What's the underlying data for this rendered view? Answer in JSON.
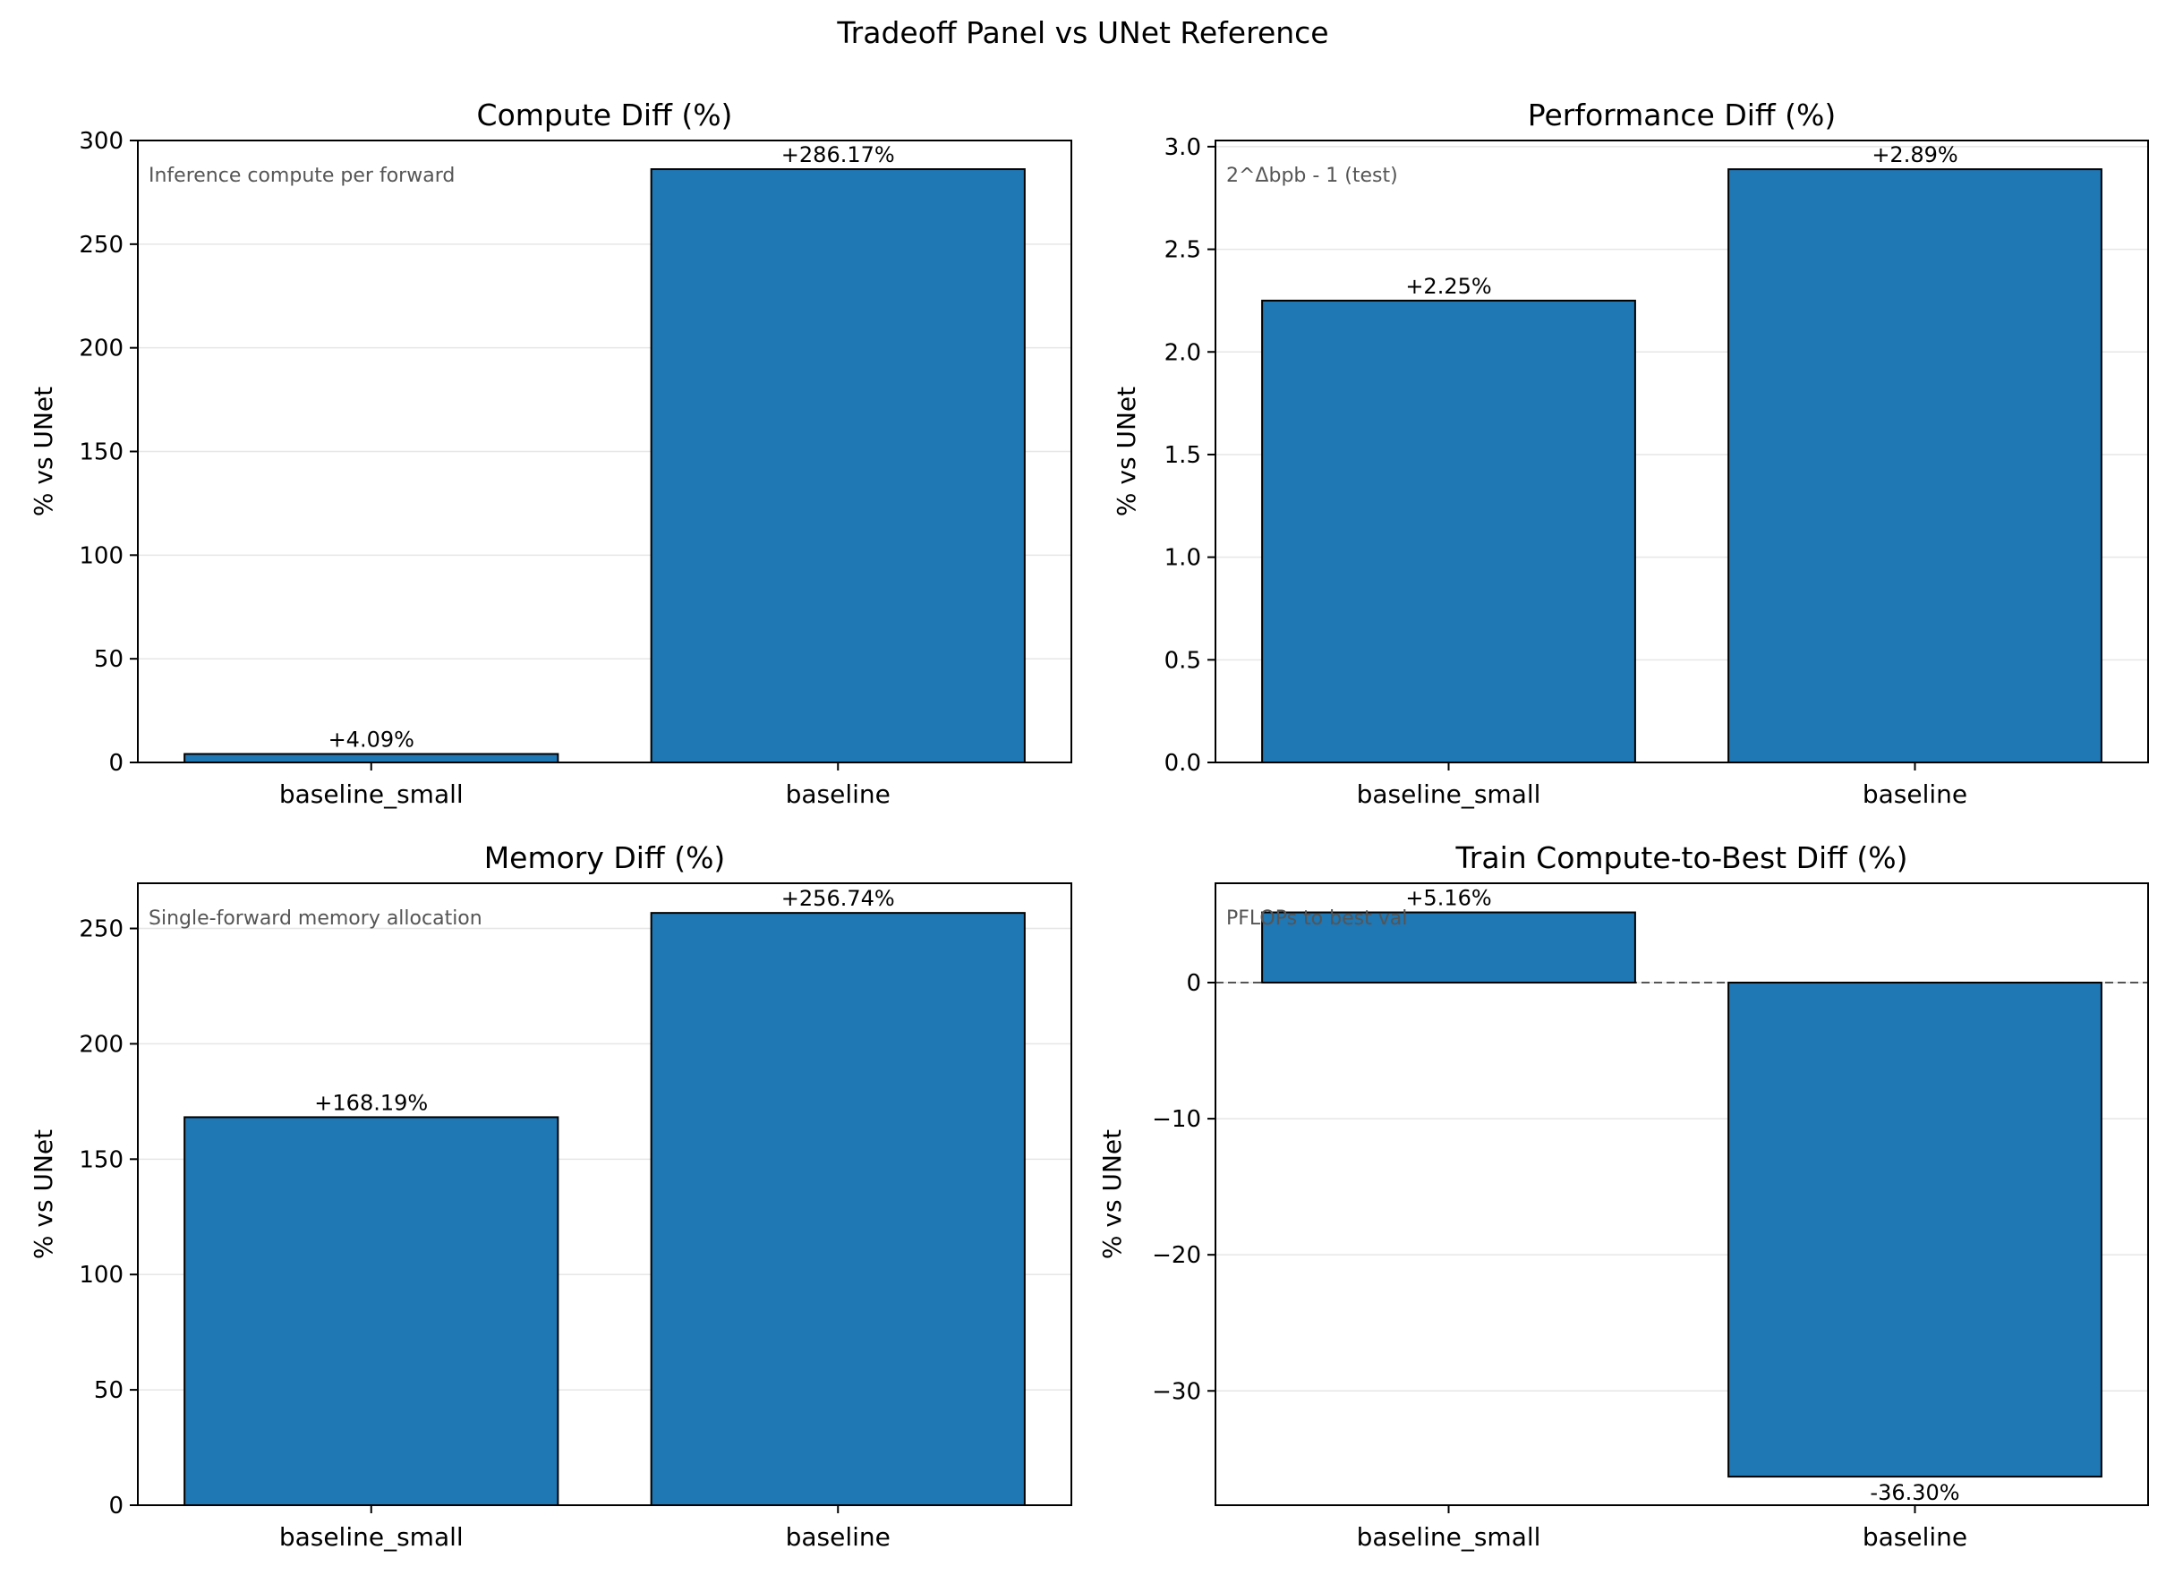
{
  "figure": {
    "title": "Tradeoff Panel vs UNet Reference"
  },
  "colors": {
    "bar": "#1f77b4",
    "bar_edge": "#000000",
    "grid": "#e6e6e6",
    "zero_line": "#555555",
    "note": "#555555"
  },
  "chart_data": [
    {
      "type": "bar",
      "title": "Compute Diff (%)",
      "ylabel": "% vs UNet",
      "note": "Inference compute per forward",
      "categories": [
        "baseline_small",
        "baseline"
      ],
      "values": [
        4.09,
        286.17
      ],
      "value_labels": [
        "+4.09%",
        "+286.17%"
      ],
      "ylim": [
        0,
        300
      ],
      "yticks": [
        0,
        50,
        100,
        150,
        200,
        250,
        300
      ],
      "ytick_labels": [
        "0",
        "50",
        "100",
        "150",
        "200",
        "250",
        "300"
      ],
      "grid": true,
      "zero_line": false
    },
    {
      "type": "bar",
      "title": "Performance Diff (%)",
      "ylabel": "% vs UNet",
      "note": "2^Δbpb - 1 (test)",
      "categories": [
        "baseline_small",
        "baseline"
      ],
      "values": [
        2.25,
        2.89
      ],
      "value_labels": [
        "+2.25%",
        "+2.89%"
      ],
      "ylim": [
        0,
        3.03
      ],
      "yticks": [
        0,
        0.5,
        1.0,
        1.5,
        2.0,
        2.5,
        3.0
      ],
      "ytick_labels": [
        "0.0",
        "0.5",
        "1.0",
        "1.5",
        "2.0",
        "2.5",
        "3.0"
      ],
      "grid": true,
      "zero_line": false
    },
    {
      "type": "bar",
      "title": "Memory Diff (%)",
      "ylabel": "% vs UNet",
      "note": "Single-forward memory allocation",
      "categories": [
        "baseline_small",
        "baseline"
      ],
      "values": [
        168.19,
        256.74
      ],
      "value_labels": [
        "+168.19%",
        "+256.74%"
      ],
      "ylim": [
        0,
        269.6
      ],
      "yticks": [
        0,
        50,
        100,
        150,
        200,
        250
      ],
      "ytick_labels": [
        "0",
        "50",
        "100",
        "150",
        "200",
        "250"
      ],
      "grid": true,
      "zero_line": false
    },
    {
      "type": "bar",
      "title": "Train Compute-to-Best Diff (%)",
      "ylabel": "% vs UNet",
      "note": "PFLOPs to best val",
      "categories": [
        "baseline_small",
        "baseline"
      ],
      "values": [
        5.16,
        -36.3
      ],
      "value_labels": [
        "+5.16%",
        "-36.30%"
      ],
      "ylim": [
        -38.4,
        7.3
      ],
      "yticks": [
        -30,
        -20,
        -10,
        0
      ],
      "ytick_labels": [
        "−30",
        "−20",
        "−10",
        "0"
      ],
      "grid": true,
      "zero_line": true
    }
  ]
}
